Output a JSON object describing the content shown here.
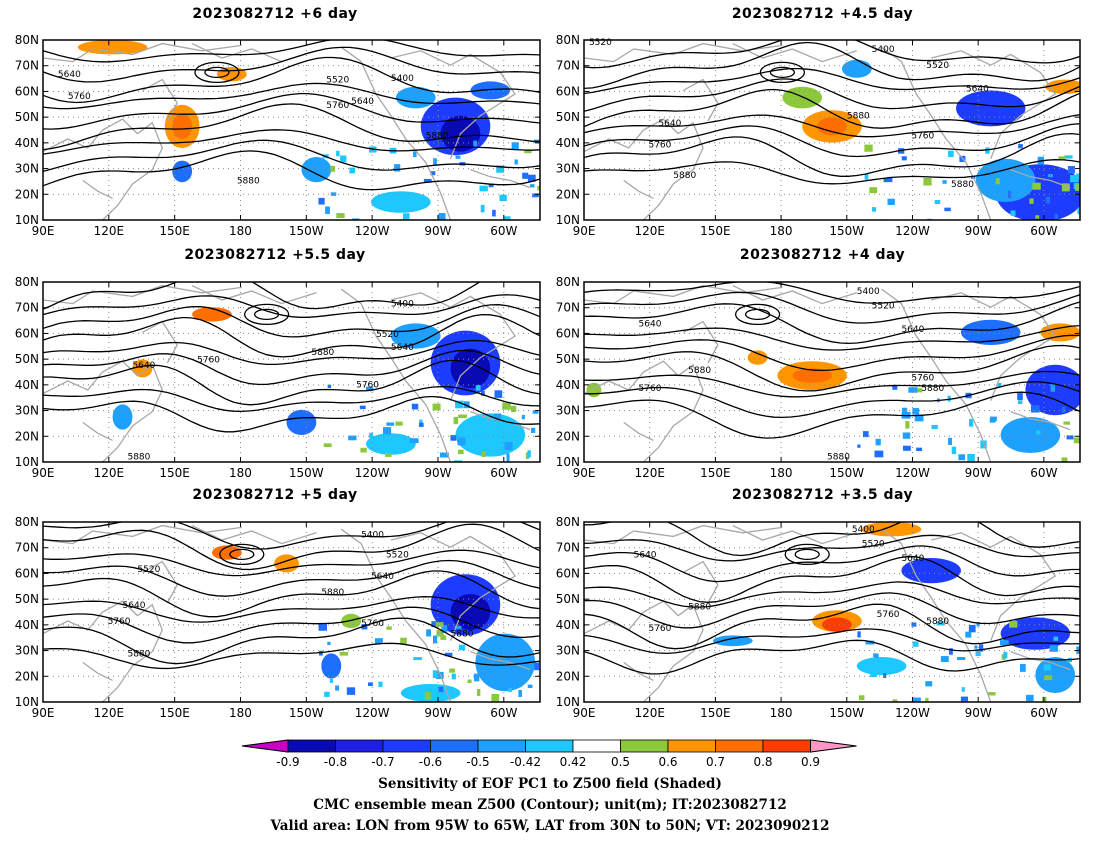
{
  "panels": [
    {
      "title": "2023082712  +6 day",
      "contours": [
        "5640",
        "5760",
        "5880",
        "5520",
        "5400",
        "5640",
        "5760",
        "5880"
      ]
    },
    {
      "title": "2023082712  +4.5 day",
      "contours": [
        "5520",
        "5400",
        "5520",
        "5640",
        "5880",
        "5640",
        "5760",
        "5880",
        "5760",
        "5880"
      ]
    },
    {
      "title": "2023082712  +5.5 day",
      "contours": [
        "5400",
        "5520",
        "5640",
        "5640",
        "5760",
        "5880",
        "5760",
        "5880"
      ]
    },
    {
      "title": "2023082712  +4 day",
      "contours": [
        "5400",
        "5520",
        "5640",
        "5640",
        "5880",
        "5760",
        "5760",
        "5880",
        "5880"
      ]
    },
    {
      "title": "2023082712  +5 day",
      "contours": [
        "5400",
        "5520",
        "5520",
        "5640",
        "5640",
        "5760",
        "5880",
        "5880",
        "5760",
        "5880"
      ]
    },
    {
      "title": "2023082712  +3.5 day",
      "contours": [
        "5400",
        "5520",
        "5640",
        "5640",
        "5880",
        "5760",
        "5760",
        "5880"
      ]
    }
  ],
  "lat_labels": [
    "80N",
    "70N",
    "60N",
    "50N",
    "40N",
    "30N",
    "20N",
    "10N"
  ],
  "lon_labels": [
    "90E",
    "120E",
    "150E",
    "180",
    "150W",
    "120W",
    "90W",
    "60W"
  ],
  "colorbar": {
    "ticks": [
      "-0.9",
      "-0.8",
      "-0.7",
      "-0.6",
      "-0.5",
      "-0.42",
      "0.42",
      "0.5",
      "0.6",
      "0.7",
      "0.8",
      "0.9"
    ],
    "colors": [
      "#0a0ab4",
      "#1e1ee6",
      "#1e3cff",
      "#1e6eff",
      "#1ea0ff",
      "#1ec8ff",
      "#ffffff",
      "#8cc83c",
      "#ff9600",
      "#ff6e00",
      "#ff3c00",
      "#ff0000"
    ],
    "under_color": "#c800c8",
    "over_color": "#ff96c8"
  },
  "captions": [
    "Sensitivity of EOF PC1 to Z500 field (Shaded)",
    "CMC ensemble mean Z500 (Contour); unit(m); IT:2023082712",
    "Valid area: LON from 95W to 65W, LAT from 30N to 50N; VT: 2023090212"
  ]
}
